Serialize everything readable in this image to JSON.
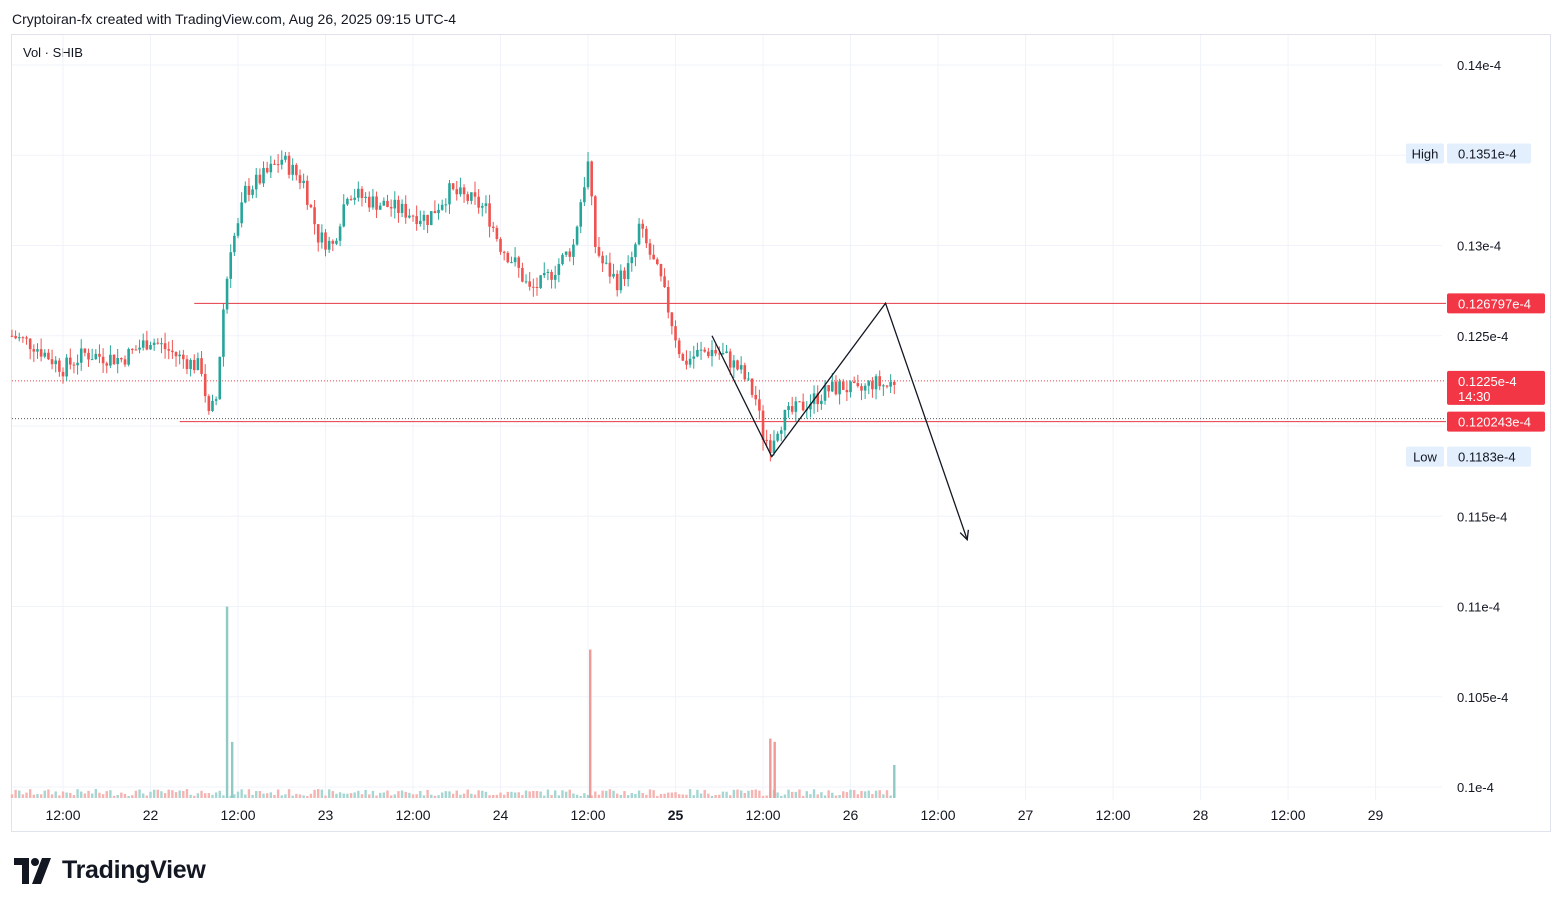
{
  "header": {
    "author_line": "Cryptoiran-fx created with TradingView.com, Aug 26, 2025 09:15 UTC-4"
  },
  "legend": {
    "label": "Vol · SHIB"
  },
  "logo": {
    "text": "TradingView"
  },
  "colors": {
    "up": "#26a69a",
    "down": "#ef5350",
    "level_line": "#e53945",
    "tag_red": "#f23645",
    "tag_blue_bg": "#e3effd",
    "grid": "#f0f3fa"
  },
  "chart_data": {
    "type": "candlestick",
    "symbol": "SHIB",
    "price_axis": {
      "ticks": [
        {
          "value": 1.4e-05,
          "label": "0.14e-4"
        },
        {
          "value": 1.3e-05,
          "label": "0.13e-4"
        },
        {
          "value": 1.25e-05,
          "label": "0.125e-4"
        },
        {
          "value": 1.15e-05,
          "label": "0.115e-4"
        },
        {
          "value": 1.1e-05,
          "label": "0.11e-4"
        },
        {
          "value": 1.05e-05,
          "label": "0.105e-4"
        },
        {
          "value": 1e-05,
          "label": "0.1e-4"
        }
      ],
      "ylim": [
        9.9e-06,
        1.41e-05
      ]
    },
    "time_axis": {
      "ticks": [
        {
          "t": 12,
          "label": "12:00",
          "bold": false
        },
        {
          "t": 24,
          "label": "22",
          "bold": false
        },
        {
          "t": 36,
          "label": "12:00",
          "bold": false
        },
        {
          "t": 48,
          "label": "23",
          "bold": false
        },
        {
          "t": 60,
          "label": "12:00",
          "bold": false
        },
        {
          "t": 72,
          "label": "24",
          "bold": false
        },
        {
          "t": 84,
          "label": "12:00",
          "bold": false
        },
        {
          "t": 96,
          "label": "25",
          "bold": true
        },
        {
          "t": 108,
          "label": "12:00",
          "bold": false
        },
        {
          "t": 120,
          "label": "26",
          "bold": false
        },
        {
          "t": 132,
          "label": "12:00",
          "bold": false
        },
        {
          "t": 144,
          "label": "27",
          "bold": false
        },
        {
          "t": 156,
          "label": "12:00",
          "bold": false
        },
        {
          "t": 168,
          "label": "28",
          "bold": false
        },
        {
          "t": 180,
          "label": "12:00",
          "bold": false
        },
        {
          "t": 192,
          "label": "29",
          "bold": false
        }
      ],
      "xlim": [
        5,
        200
      ]
    },
    "price_path": [
      [
        5,
        1.25e-05
      ],
      [
        8,
        1.245e-05
      ],
      [
        12,
        1.232e-05
      ],
      [
        15,
        1.24e-05
      ],
      [
        20,
        1.237e-05
      ],
      [
        24,
        1.248e-05
      ],
      [
        28,
        1.238e-05
      ],
      [
        31,
        1.232e-05
      ],
      [
        32,
        1.205e-05
      ],
      [
        33,
        1.215e-05
      ],
      [
        34,
        1.265e-05
      ],
      [
        35,
        1.3e-05
      ],
      [
        36,
        1.31e-05
      ],
      [
        37,
        1.33e-05
      ],
      [
        40,
        1.34e-05
      ],
      [
        42,
        1.348e-05
      ],
      [
        45,
        1.335e-05
      ],
      [
        47,
        1.305e-05
      ],
      [
        49,
        1.3e-05
      ],
      [
        51,
        1.33e-05
      ],
      [
        54,
        1.325e-05
      ],
      [
        58,
        1.32e-05
      ],
      [
        62,
        1.315e-05
      ],
      [
        65,
        1.33e-05
      ],
      [
        68,
        1.325e-05
      ],
      [
        70,
        1.32e-05
      ],
      [
        72,
        1.3e-05
      ],
      [
        74,
        1.29e-05
      ],
      [
        76,
        1.275e-05
      ],
      [
        78,
        1.28e-05
      ],
      [
        80,
        1.29e-05
      ],
      [
        82,
        1.3e-05
      ],
      [
        83,
        1.325e-05
      ],
      [
        84,
        1.345e-05
      ],
      [
        85,
        1.3e-05
      ],
      [
        86,
        1.29e-05
      ],
      [
        88,
        1.28e-05
      ],
      [
        90,
        1.29e-05
      ],
      [
        91,
        1.31e-05
      ],
      [
        92,
        1.3e-05
      ],
      [
        94,
        1.28e-05
      ],
      [
        96,
        1.25e-05
      ],
      [
        97,
        1.235e-05
      ],
      [
        99,
        1.24e-05
      ],
      [
        101,
        1.242e-05
      ],
      [
        103,
        1.238e-05
      ],
      [
        105,
        1.23e-05
      ],
      [
        107,
        1.215e-05
      ],
      [
        108,
        1.195e-05
      ],
      [
        109,
        1.19e-05
      ],
      [
        110,
        1.2e-05
      ],
      [
        111,
        1.205e-05
      ],
      [
        113,
        1.21e-05
      ],
      [
        115,
        1.215e-05
      ],
      [
        117,
        1.22e-05
      ],
      [
        119,
        1.222e-05
      ],
      [
        121,
        1.218e-05
      ],
      [
        123,
        1.224e-05
      ],
      [
        125,
        1.222e-05
      ],
      [
        126,
        1.225e-05
      ]
    ],
    "volume_spikes": [
      {
        "t": 34.5,
        "value": 0.58,
        "dir": "up"
      },
      {
        "t": 35.2,
        "value": 0.17,
        "dir": "up"
      },
      {
        "t": 84.3,
        "value": 0.45,
        "dir": "down"
      },
      {
        "t": 109.0,
        "value": 0.18,
        "dir": "down"
      },
      {
        "t": 109.6,
        "value": 0.17,
        "dir": "down"
      },
      {
        "t": 126.0,
        "value": 0.1,
        "dir": "up"
      }
    ],
    "levels": [
      {
        "price": 1.26797e-05,
        "label": "0.126797e-4",
        "style": "solid",
        "from_t": 30
      },
      {
        "price": 1.20243e-05,
        "label": "0.120243e-4",
        "style": "solid",
        "from_t": 28
      },
      {
        "price": 1.225e-05,
        "label": "0.1225e-4",
        "sub": "14:30",
        "style": "dotted",
        "from_t": 5
      }
    ],
    "markers": [
      {
        "label": "High",
        "value_label": "0.1351e-4",
        "price": 1.351e-05
      },
      {
        "label": "Low",
        "value_label": "0.1183e-4",
        "price": 1.183e-05
      }
    ],
    "drawing": {
      "points": [
        [
          101,
          1.25e-05
        ],
        [
          109.2,
          1.183e-05
        ],
        [
          124.8,
          1.268e-05
        ],
        [
          136,
          1.137e-05
        ]
      ],
      "arrow_end": true
    }
  }
}
